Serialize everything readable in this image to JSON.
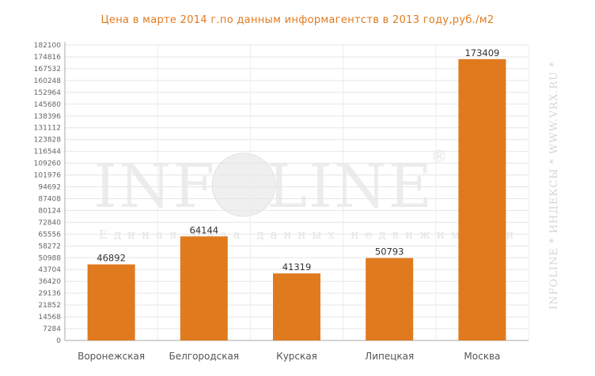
{
  "chart_data": {
    "type": "bar",
    "title": "Цена  в  марте  2014  г.по  данным  информагентств  в  2013  году,руб./м2",
    "categories": [
      "Воронежская",
      "Белгородская",
      "Курская",
      "Липецкая",
      "Москва"
    ],
    "values": [
      46892,
      64144,
      41319,
      50793,
      173409
    ],
    "ylim": [
      0,
      182100
    ],
    "yticks": [
      "0",
      "7284",
      "14568",
      "21852",
      "29136",
      "36420",
      "43704",
      "50988",
      "58272",
      "65556",
      "72840",
      "80124",
      "87408",
      "94692",
      "101976",
      "109260",
      "116544",
      "123828",
      "131112",
      "138396",
      "145680",
      "152964",
      "160248",
      "167532",
      "174816",
      "182100"
    ],
    "xlabel": "",
    "ylabel": "",
    "grid": true,
    "bar_color": "#e07a1f"
  },
  "watermark": {
    "logo": "INFOLINE",
    "registered": "®",
    "tagline": "Единая база данных недвижимости",
    "side": "INFOLINE * ИНДЕКСЫ * WWW.VRX.RU *"
  }
}
